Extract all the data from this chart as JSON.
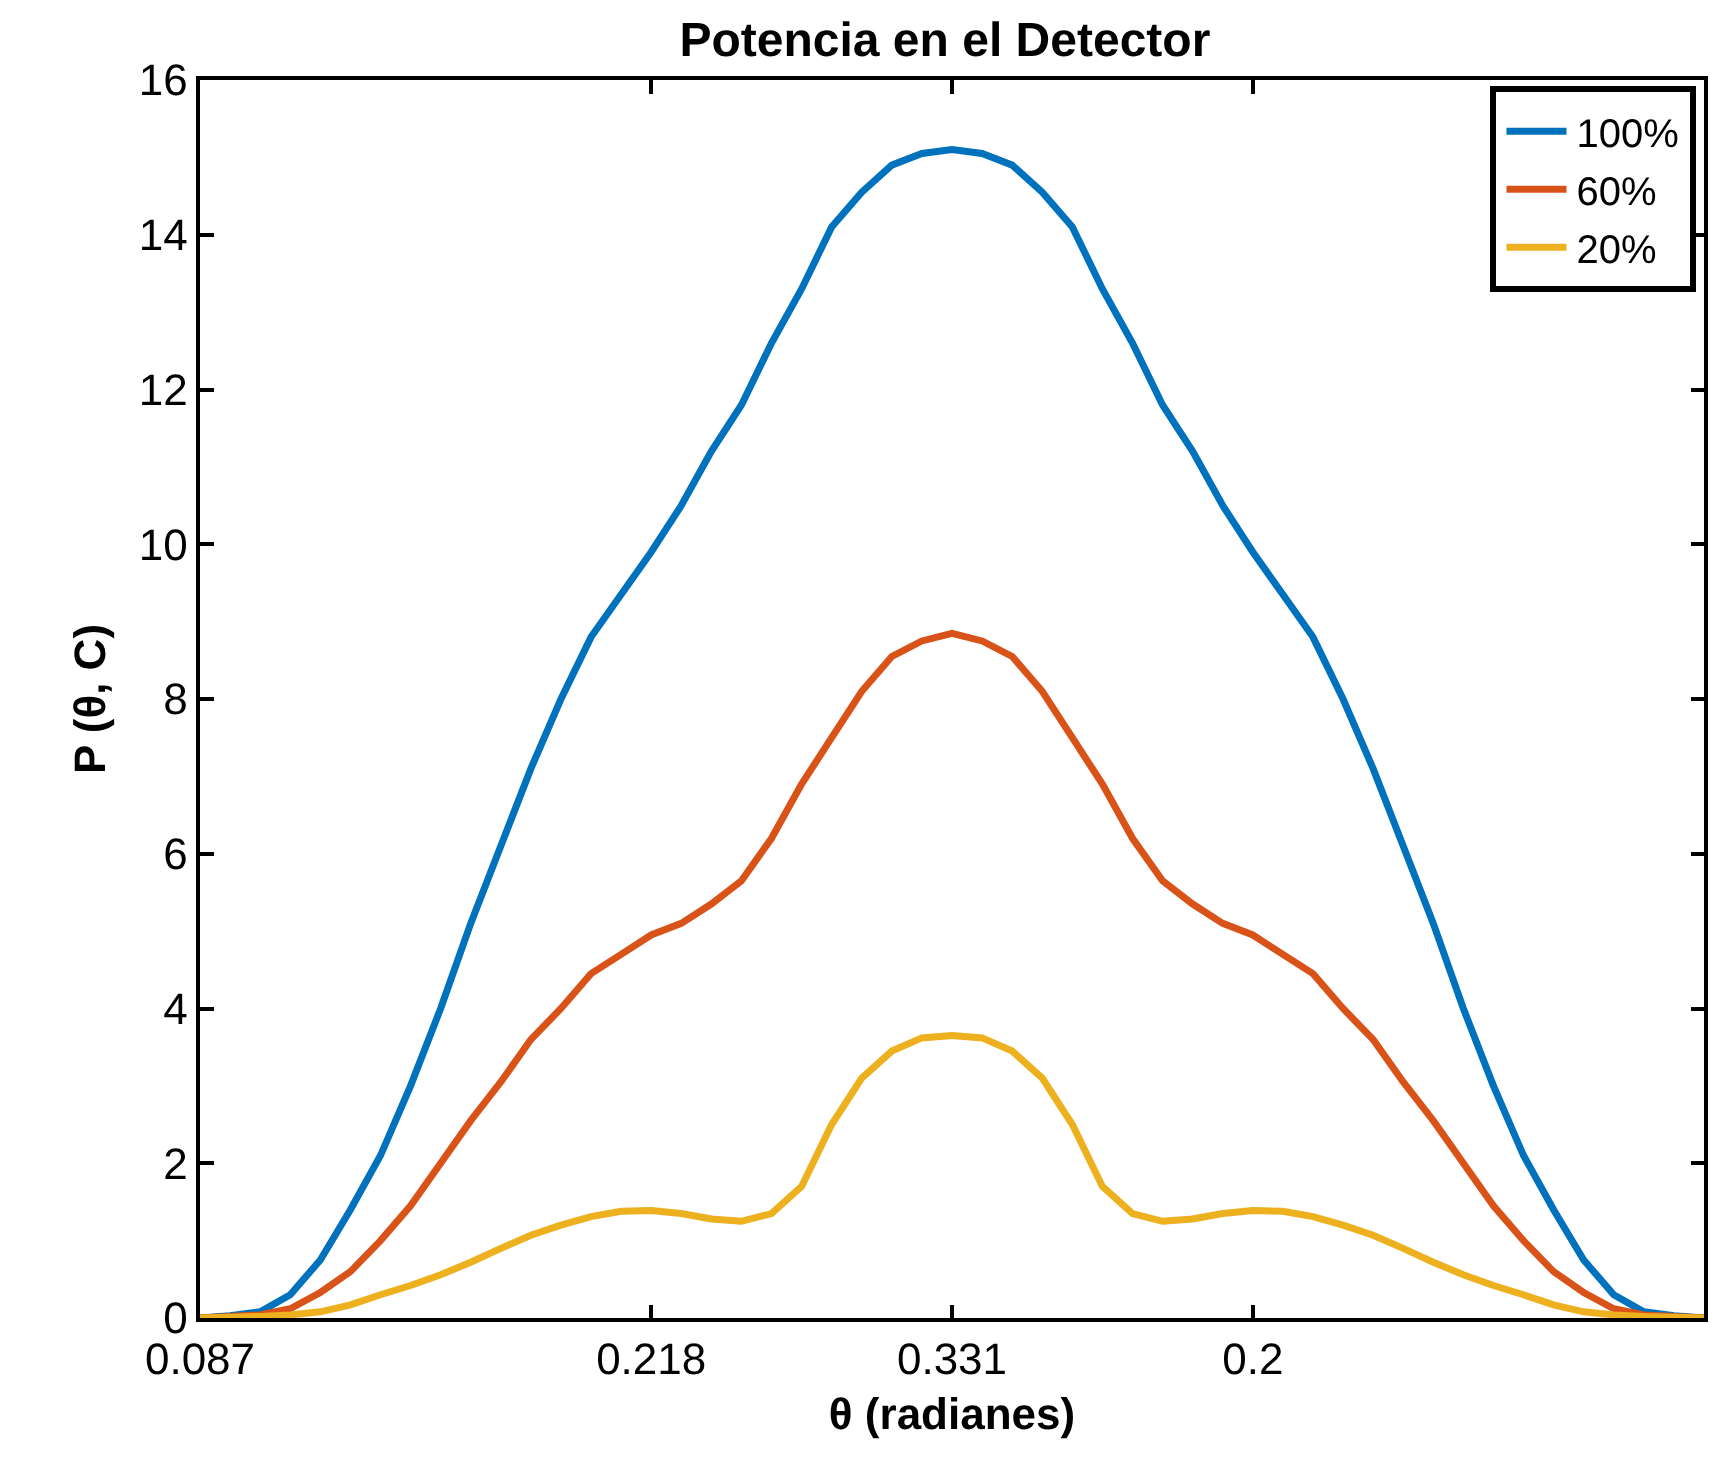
{
  "chart_data": {
    "type": "line",
    "title": "Potencia en el Detector",
    "xlabel": "θ (radianes)",
    "ylabel": "P (θ, C)",
    "categories": [
      "0.087",
      null,
      null,
      null,
      null,
      null,
      null,
      null,
      null,
      null,
      null,
      null,
      null,
      null,
      null,
      "0.218",
      null,
      null,
      null,
      null,
      null,
      null,
      null,
      null,
      null,
      "0.331",
      null,
      null,
      null,
      null,
      null,
      null,
      null,
      null,
      null,
      "0.2",
      null,
      null,
      null,
      null,
      null,
      null,
      null,
      null,
      null,
      null,
      null,
      null,
      null,
      null,
      null
    ],
    "series": [
      {
        "name": "100%",
        "color": "#0072bd",
        "values": [
          0,
          0.03,
          0.08,
          0.3,
          0.75,
          1.4,
          2.1,
          3.0,
          4.0,
          5.1,
          6.1,
          7.1,
          8.0,
          8.8,
          9.35,
          9.9,
          10.5,
          11.2,
          11.8,
          12.6,
          13.3,
          14.1,
          14.55,
          14.9,
          15.05,
          15.1,
          15.05,
          14.9,
          14.55,
          14.1,
          13.3,
          12.6,
          11.8,
          11.2,
          10.5,
          9.9,
          9.35,
          8.8,
          8.0,
          7.1,
          6.1,
          5.1,
          4.0,
          3.0,
          2.1,
          1.4,
          0.75,
          0.3,
          0.08,
          0.03,
          0
        ]
      },
      {
        "name": "60%",
        "color": "#d95319",
        "values": [
          0,
          0.02,
          0.04,
          0.12,
          0.33,
          0.6,
          1.0,
          1.45,
          2.0,
          2.55,
          3.05,
          3.6,
          4.0,
          4.45,
          4.7,
          4.95,
          5.1,
          5.35,
          5.65,
          6.2,
          6.9,
          7.5,
          8.1,
          8.55,
          8.75,
          8.85,
          8.75,
          8.55,
          8.1,
          7.5,
          6.9,
          6.2,
          5.65,
          5.35,
          5.1,
          4.95,
          4.7,
          4.45,
          4.0,
          3.6,
          3.05,
          2.55,
          2.0,
          1.45,
          1.0,
          0.6,
          0.33,
          0.12,
          0.04,
          0.02,
          0
        ]
      },
      {
        "name": "20%",
        "color": "#edb120",
        "values": [
          0,
          0.01,
          0.02,
          0.04,
          0.08,
          0.17,
          0.3,
          0.42,
          0.56,
          0.72,
          0.9,
          1.07,
          1.2,
          1.31,
          1.38,
          1.39,
          1.35,
          1.28,
          1.25,
          1.35,
          1.7,
          2.5,
          3.1,
          3.45,
          3.62,
          3.65,
          3.62,
          3.45,
          3.1,
          2.5,
          1.7,
          1.35,
          1.25,
          1.28,
          1.35,
          1.39,
          1.38,
          1.31,
          1.2,
          1.07,
          0.9,
          0.72,
          0.56,
          0.42,
          0.3,
          0.17,
          0.08,
          0.04,
          0.02,
          0.01,
          0
        ]
      }
    ],
    "ylim": [
      0,
      16
    ],
    "yticks": [
      0,
      2,
      4,
      6,
      8,
      10,
      12,
      14,
      16
    ],
    "grid": false,
    "legend": "top right",
    "marker": "none",
    "line_style": "solid"
  }
}
